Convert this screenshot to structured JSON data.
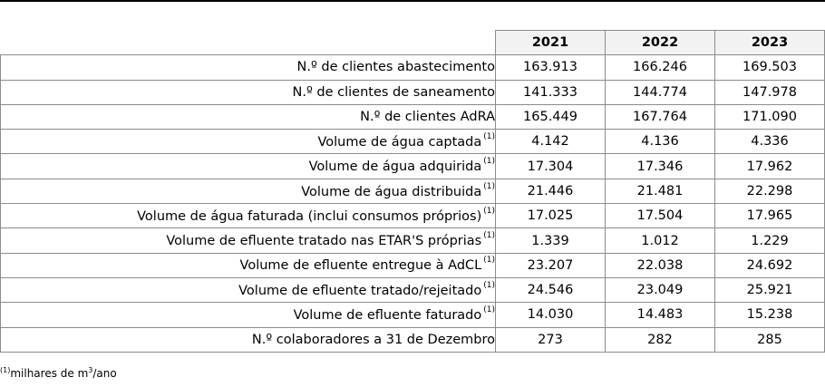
{
  "table": {
    "years": [
      "2021",
      "2022",
      "2023"
    ],
    "rows": [
      {
        "label": "N.º de clientes abastecimento",
        "note": "",
        "values": [
          "163.913",
          "166.246",
          "169.503"
        ]
      },
      {
        "label": "N.º de clientes de saneamento",
        "note": "",
        "values": [
          "141.333",
          "144.774",
          "147.978"
        ]
      },
      {
        "label": "N.º de clientes AdRA",
        "note": "",
        "values": [
          "165.449",
          "167.764",
          "171.090"
        ]
      },
      {
        "label": "Volume de água captada",
        "note": "(1)",
        "values": [
          "4.142",
          "4.136",
          "4.336"
        ]
      },
      {
        "label": "Volume de água adquirida",
        "note": "(1)",
        "values": [
          "17.304",
          "17.346",
          "17.962"
        ]
      },
      {
        "label": "Volume de água distribuida",
        "note": "(1)",
        "values": [
          "21.446",
          "21.481",
          "22.298"
        ]
      },
      {
        "label": "Volume de água faturada (inclui consumos próprios)",
        "note": "(1)",
        "values": [
          "17.025",
          "17.504",
          "17.965"
        ]
      },
      {
        "label": "Volume de efluente tratado nas  ETAR'S próprias",
        "note": "(1)",
        "values": [
          "1.339",
          "1.012",
          "1.229"
        ]
      },
      {
        "label": "Volume de efluente entregue à AdCL",
        "note": "(1)",
        "values": [
          "23.207",
          "22.038",
          "24.692"
        ]
      },
      {
        "label": "Volume de efluente tratado/rejeitado",
        "note": "(1)",
        "values": [
          "24.546",
          "23.049",
          "25.921"
        ]
      },
      {
        "label": "Volume de efluente faturado",
        "note": "(1)",
        "values": [
          "14.030",
          "14.483",
          "15.238"
        ]
      },
      {
        "label": "N.º colaboradores a 31 de Dezembro",
        "note": "",
        "values": [
          "273",
          "282",
          "285"
        ]
      }
    ]
  },
  "footnote": {
    "marker": "(1)",
    "text_before": "milhares de m",
    "superscript": "3",
    "text_after": "/ano"
  }
}
